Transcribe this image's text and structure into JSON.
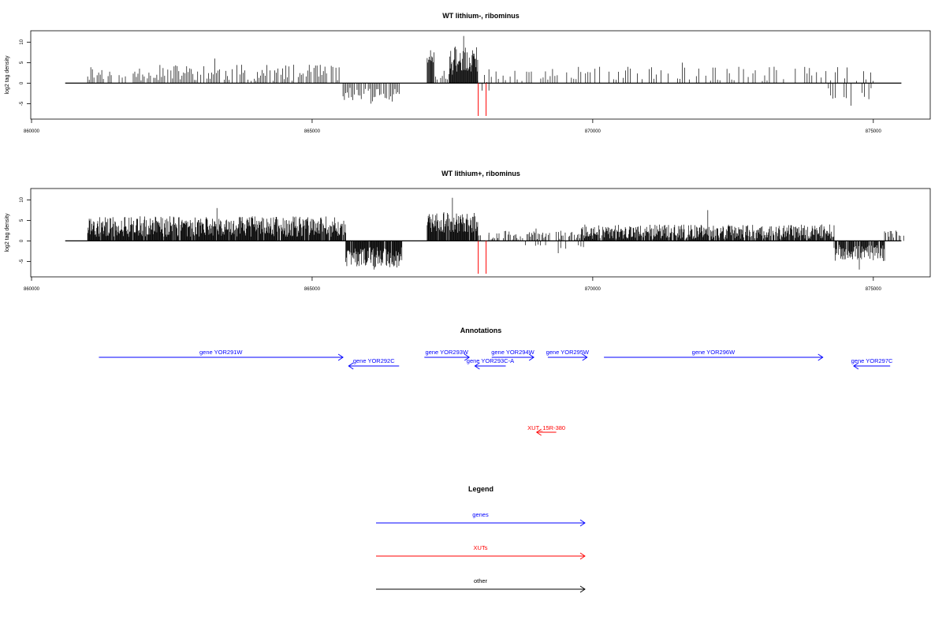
{
  "colors": {
    "genes": "#0000ff",
    "xuts": "#ff0000",
    "other": "#000000",
    "marker": "#ff0000",
    "bars": "#000000"
  },
  "chart_data": [
    {
      "type": "bar",
      "title": "WT lithium-, ribominus",
      "ylabel": "log2 tag density",
      "xlim": [
        860000,
        876000
      ],
      "ylim": [
        -8,
        12
      ],
      "x_ticks": [
        860000,
        865000,
        870000,
        875000
      ],
      "x_tick_labels": [
        "860000",
        "865000",
        "870000",
        "875000"
      ],
      "y_ticks": [
        -5,
        0,
        5,
        10
      ],
      "y_tick_labels": [
        "-5",
        "0",
        "5",
        "10"
      ],
      "baseline_x_range": [
        860600,
        875500
      ],
      "markers_x": [
        867960,
        868100
      ],
      "segments": [
        {
          "x": [
            861000,
            865500
          ],
          "seed": 11,
          "step": 28,
          "min": 0.5,
          "max": 4.5,
          "peak": 6.0,
          "density": 0.72
        },
        {
          "x": [
            865550,
            866550
          ],
          "seed": 12,
          "step": 25,
          "min": -4.5,
          "max": -1.0,
          "peak": -5.0,
          "density": 0.8
        },
        {
          "x": [
            867050,
            867170
          ],
          "seed": 13,
          "step": 12,
          "min": 4.5,
          "max": 8.0,
          "peak": 8.0,
          "density": 1.0
        },
        {
          "x": [
            867200,
            867450
          ],
          "seed": 14,
          "step": 30,
          "min": 0.5,
          "max": 2.5,
          "peak": 3.0,
          "density": 0.6
        },
        {
          "x": [
            867450,
            867950
          ],
          "seed": 15,
          "step": 10,
          "min": 2.0,
          "max": 9.0,
          "peak": 11.5,
          "density": 1.0
        },
        {
          "x": [
            867950,
            868150
          ],
          "seed": 16,
          "step": 40,
          "min": -2.0,
          "max": 1.5,
          "peak": 2.0,
          "density": 0.6
        },
        {
          "x": [
            868150,
            875000
          ],
          "seed": 17,
          "step": 42,
          "min": 0.5,
          "max": 4.0,
          "peak": 5.0,
          "density": 0.55
        },
        {
          "x": [
            874200,
            875000
          ],
          "seed": 18,
          "step": 40,
          "min": -4.0,
          "max": -1.0,
          "peak": -5.5,
          "density": 0.6
        }
      ]
    },
    {
      "type": "bar",
      "title": "WT lithium+, ribominus",
      "ylabel": "log2 tag density",
      "xlim": [
        860000,
        876000
      ],
      "ylim": [
        -8,
        12
      ],
      "x_ticks": [
        860000,
        865000,
        870000,
        875000
      ],
      "x_tick_labels": [
        "860000",
        "865000",
        "870000",
        "875000"
      ],
      "y_ticks": [
        -5,
        0,
        5,
        10
      ],
      "y_tick_labels": [
        "-5",
        "0",
        "5",
        "10"
      ],
      "baseline_x_range": [
        860600,
        875500
      ],
      "markers_x": [
        867960,
        868100
      ],
      "segments": [
        {
          "x": [
            861000,
            865600
          ],
          "seed": 21,
          "step": 9,
          "min": 1.0,
          "max": 6.0,
          "peak": 8.0,
          "density": 0.95
        },
        {
          "x": [
            865600,
            866600
          ],
          "seed": 22,
          "step": 9,
          "min": -6.5,
          "max": -1.5,
          "peak": -7.0,
          "density": 0.95
        },
        {
          "x": [
            867050,
            867950
          ],
          "seed": 23,
          "step": 9,
          "min": 2.0,
          "max": 7.0,
          "peak": 10.5,
          "density": 0.95
        },
        {
          "x": [
            867950,
            868150
          ],
          "seed": 24,
          "step": 25,
          "min": 0.5,
          "max": 2.0,
          "peak": 2.0,
          "density": 0.6
        },
        {
          "x": [
            868150,
            869800
          ],
          "seed": 25,
          "step": 20,
          "min": 0.3,
          "max": 2.5,
          "peak": 3.0,
          "density": 0.75
        },
        {
          "x": [
            868800,
            869900
          ],
          "seed": 26,
          "step": 45,
          "min": -2.0,
          "max": -0.5,
          "peak": -3.0,
          "density": 0.5
        },
        {
          "x": [
            869800,
            874300
          ],
          "seed": 27,
          "step": 10,
          "min": 0.5,
          "max": 4.0,
          "peak": 7.5,
          "density": 0.9
        },
        {
          "x": [
            874300,
            875200
          ],
          "seed": 28,
          "step": 10,
          "min": -5.0,
          "max": -1.0,
          "peak": -7.0,
          "density": 0.9
        },
        {
          "x": [
            875200,
            875550
          ],
          "seed": 29,
          "step": 20,
          "min": 0.5,
          "max": 2.5,
          "peak": 2.5,
          "density": 0.7
        }
      ]
    }
  ],
  "annotations": {
    "title": "Annotations",
    "genes": [
      {
        "label": "gene YOR291W",
        "start": 861200,
        "end": 865550,
        "strand": "+",
        "row": 0
      },
      {
        "label": "gene YOR292C",
        "start": 865650,
        "end": 866550,
        "strand": "-",
        "row": 1
      },
      {
        "label": "gene YOR293W",
        "start": 867000,
        "end": 867800,
        "strand": "+",
        "row": 0
      },
      {
        "label": "gene YOR293C-A",
        "start": 867900,
        "end": 868450,
        "strand": "-",
        "row": 1
      },
      {
        "label": "gene YOR294W",
        "start": 868200,
        "end": 868950,
        "strand": "+",
        "row": 0
      },
      {
        "label": "gene YOR295W",
        "start": 869200,
        "end": 869900,
        "strand": "+",
        "row": 0
      },
      {
        "label": "gene YOR296W",
        "start": 870200,
        "end": 874100,
        "strand": "+",
        "row": 0
      },
      {
        "label": "gene YOR297C",
        "start": 874650,
        "end": 875300,
        "strand": "-",
        "row": 1
      }
    ],
    "xuts": [
      {
        "label": "XUT_15R-380",
        "start": 869000,
        "end": 869350,
        "strand": "-"
      }
    ]
  },
  "legend": {
    "title": "Legend",
    "items": [
      {
        "label": "genes",
        "color": "#0000ff"
      },
      {
        "label": "XUTs",
        "color": "#ff0000"
      },
      {
        "label": "other",
        "color": "#000000"
      }
    ]
  }
}
